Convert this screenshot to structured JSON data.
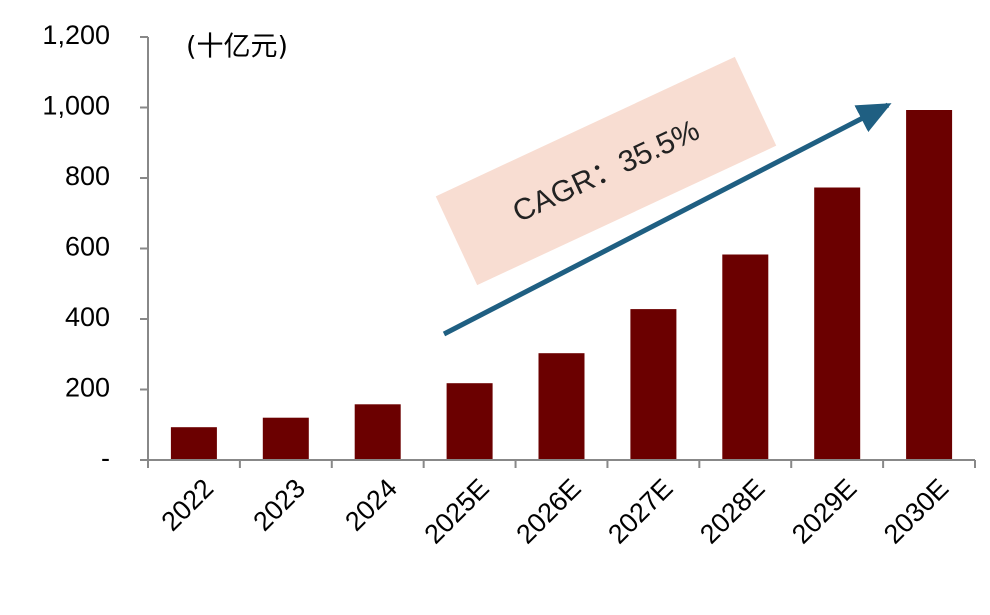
{
  "chart_data": {
    "type": "bar",
    "unit": "(十亿元)",
    "categories": [
      "2022",
      "2023",
      "2024",
      "2025E",
      "2026E",
      "2027E",
      "2028E",
      "2029E",
      "2030E"
    ],
    "values": [
      93,
      120,
      158,
      218,
      303,
      428,
      583,
      773,
      993
    ],
    "ylim": [
      0,
      1200
    ],
    "yticks": [
      0,
      200,
      400,
      600,
      800,
      1000,
      1200
    ],
    "ytick_labels": [
      "-",
      "200",
      "400",
      "600",
      "800",
      "1,000",
      "1,200"
    ],
    "annotation": "CAGR：35.5%",
    "grid": false,
    "legend": "none",
    "colors": {
      "bar": "#6b0000",
      "arrow": "#1f5f82",
      "annotation_box": "#f8ddd2",
      "axis": "#888888"
    }
  }
}
